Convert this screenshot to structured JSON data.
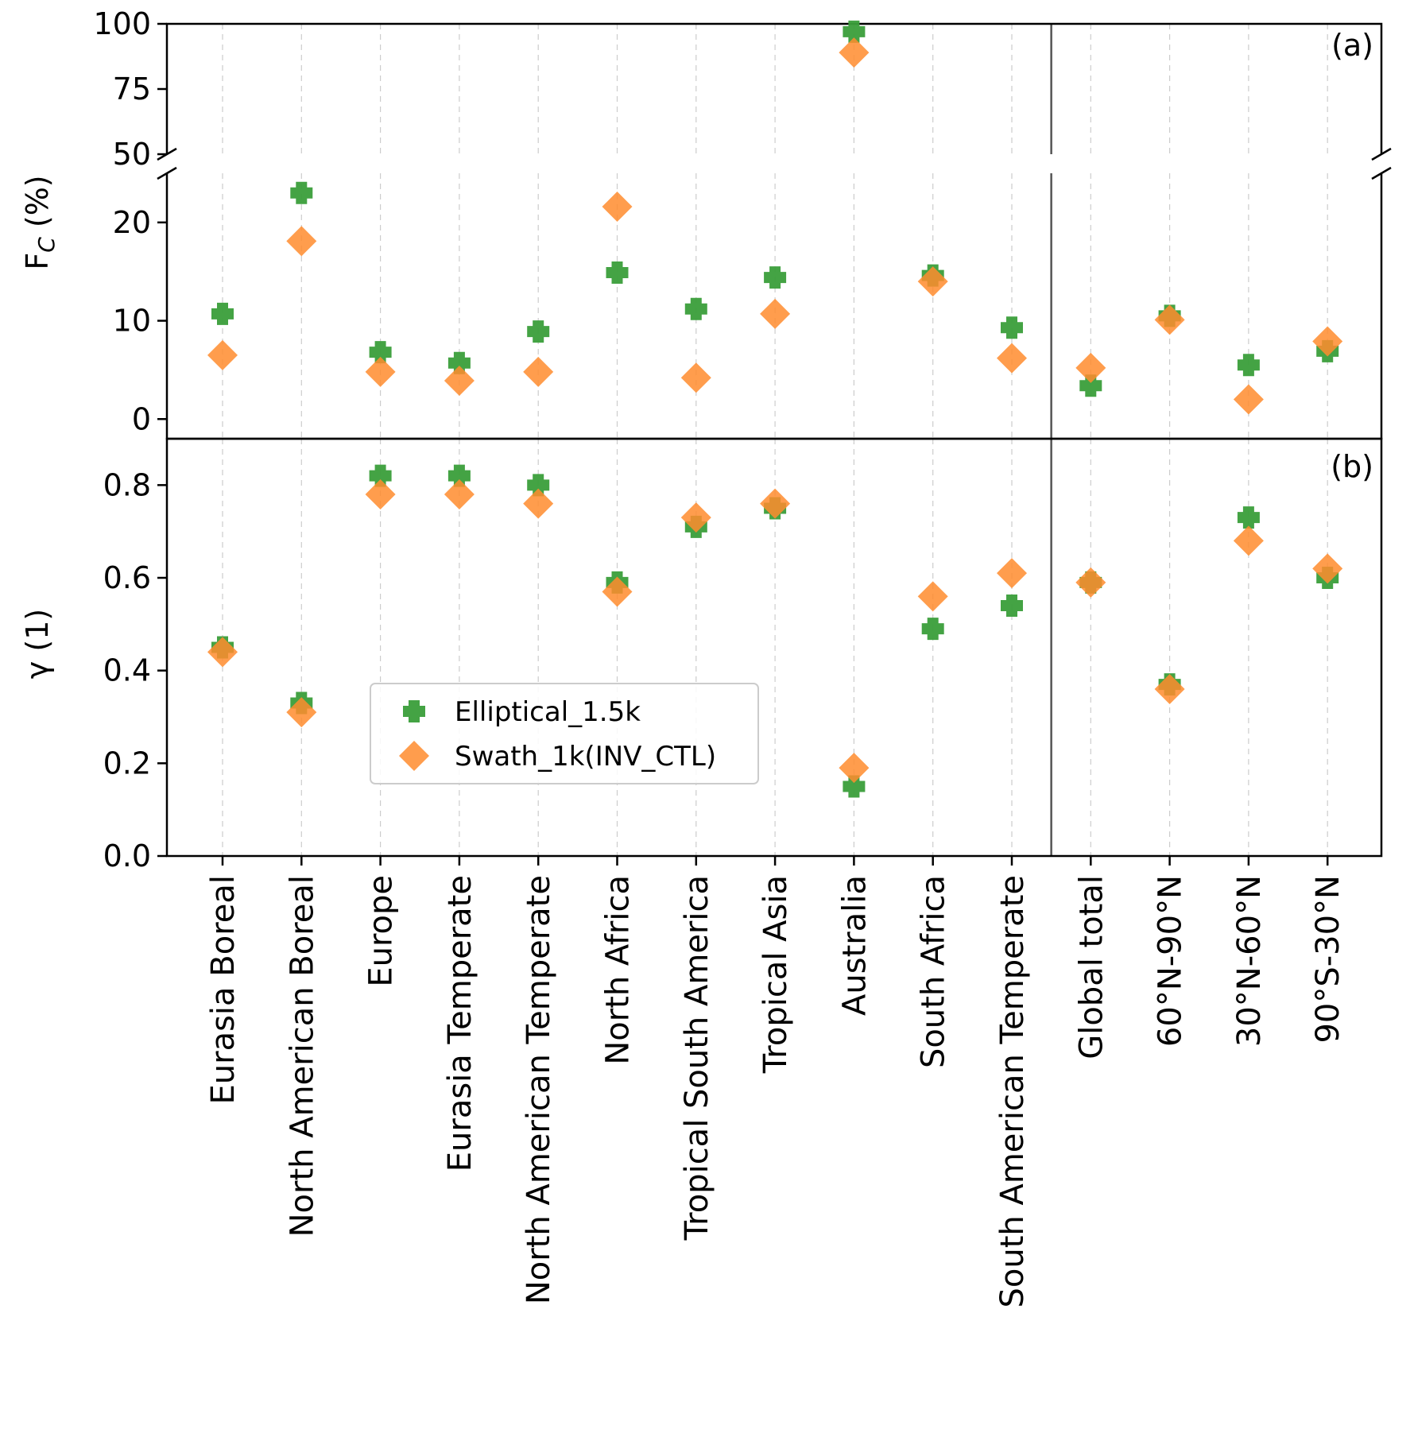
{
  "chart_data": {
    "type": "scatter",
    "categories": [
      "Eurasia Boreal",
      "North American Boreal",
      "Europe",
      "Eurasia Temperate",
      "North American Temperate",
      "North Africa",
      "Tropical South America",
      "Tropical Asia",
      "Australia",
      "South Africa",
      "South American Temperate",
      "Global total",
      "60°N-90°N",
      "30°N-60°N",
      "90°S-30°N"
    ],
    "separator_after_index": 10,
    "colors": {
      "Elliptical_1.5k": "#3a9e3a",
      "Swath_1k(INV_CTL)": "#ff8c2e"
    },
    "legend": {
      "position": "center-left",
      "entries": [
        "Elliptical_1.5k",
        "Swath_1k(INV_CTL)"
      ]
    },
    "panels": [
      {
        "id": "a",
        "label": "(a)",
        "ylabel": "F",
        "ylabel_sub": "C",
        "ylabel_unit": " (%)",
        "broken_axis": true,
        "upper_ylim": [
          50,
          100
        ],
        "upper_ticks": [
          "50",
          "75",
          "100"
        ],
        "lower_ylim": [
          -2,
          25
        ],
        "lower_ticks": [
          "0",
          "10",
          "20"
        ],
        "series": [
          {
            "name": "Elliptical_1.5k",
            "marker": "plus",
            "values": [
              10.7,
              23.0,
              6.8,
              5.7,
              8.9,
              14.9,
              11.2,
              14.4,
              97,
              14.6,
              9.3,
              3.4,
              10.5,
              5.5,
              6.9
            ]
          },
          {
            "name": "Swath_1k(INV_CTL)",
            "marker": "diamond",
            "values": [
              6.5,
              18.1,
              4.8,
              3.9,
              4.8,
              21.6,
              4.2,
              10.7,
              89,
              14.0,
              6.2,
              5.2,
              10.1,
              2.0,
              7.9
            ]
          }
        ]
      },
      {
        "id": "b",
        "label": "(b)",
        "ylabel": "γ (1)",
        "ylim": [
          0,
          0.9
        ],
        "ticks": [
          "0.0",
          "0.2",
          "0.4",
          "0.6",
          "0.8"
        ],
        "series": [
          {
            "name": "Elliptical_1.5k",
            "marker": "plus",
            "values": [
              0.45,
              0.33,
              0.82,
              0.82,
              0.8,
              0.59,
              0.71,
              0.75,
              0.15,
              0.49,
              0.54,
              0.59,
              0.37,
              0.73,
              0.6
            ]
          },
          {
            "name": "Swath_1k(INV_CTL)",
            "marker": "diamond",
            "values": [
              0.44,
              0.31,
              0.78,
              0.78,
              0.76,
              0.57,
              0.73,
              0.76,
              0.19,
              0.56,
              0.61,
              0.59,
              0.36,
              0.68,
              0.62
            ]
          }
        ]
      }
    ]
  }
}
